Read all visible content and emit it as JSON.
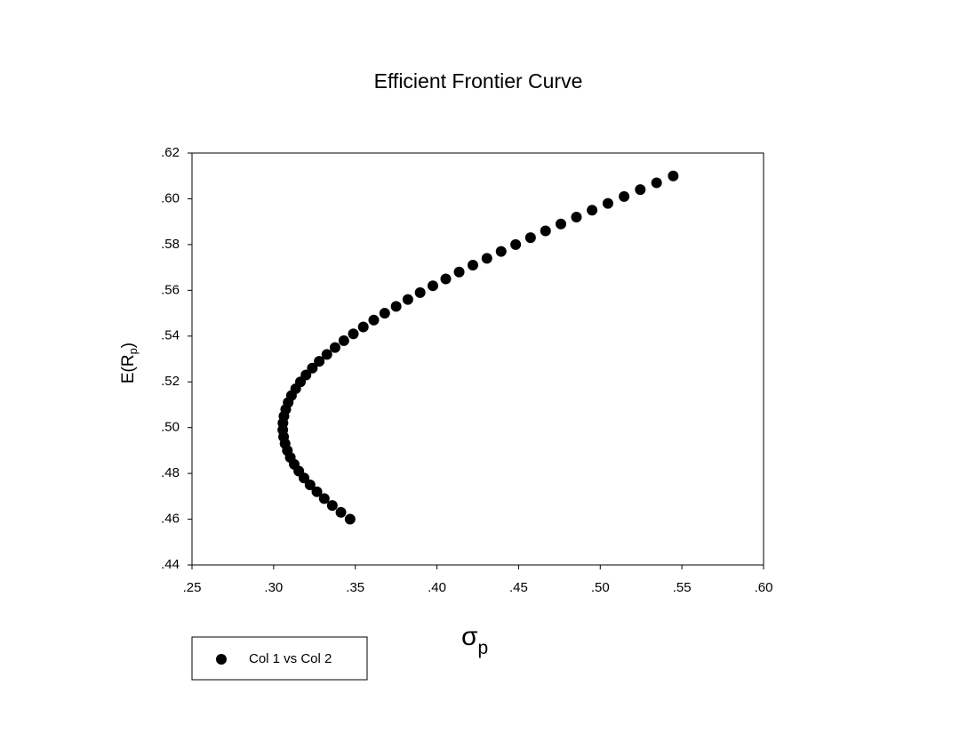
{
  "chart_data": {
    "type": "scatter",
    "title": "Efficient Frontier Curve",
    "xlabel": {
      "main": "σ",
      "sub": "p"
    },
    "ylabel": {
      "main": "E(R",
      "sub": "p",
      "end": ")"
    },
    "xlim": [
      0.25,
      0.6
    ],
    "ylim": [
      0.44,
      0.62
    ],
    "xticks": [
      {
        "value": 0.25,
        "label": ".25"
      },
      {
        "value": 0.3,
        "label": ".30"
      },
      {
        "value": 0.35,
        "label": ".35"
      },
      {
        "value": 0.4,
        "label": ".40"
      },
      {
        "value": 0.45,
        "label": ".45"
      },
      {
        "value": 0.5,
        "label": ".50"
      },
      {
        "value": 0.55,
        "label": ".55"
      },
      {
        "value": 0.6,
        "label": ".60"
      }
    ],
    "yticks": [
      {
        "value": 0.44,
        "label": ".44"
      },
      {
        "value": 0.46,
        "label": ".46"
      },
      {
        "value": 0.48,
        "label": ".48"
      },
      {
        "value": 0.5,
        "label": ".50"
      },
      {
        "value": 0.52,
        "label": ".52"
      },
      {
        "value": 0.54,
        "label": ".54"
      },
      {
        "value": 0.56,
        "label": ".56"
      },
      {
        "value": 0.58,
        "label": ".58"
      },
      {
        "value": 0.6,
        "label": ".60"
      },
      {
        "value": 0.62,
        "label": ".62"
      }
    ],
    "legend": "bottom-left",
    "series": [
      {
        "name": "Col 1 vs Col 2",
        "color": "#000000",
        "x": [
          0.3468,
          0.3412,
          0.3359,
          0.331,
          0.3265,
          0.3223,
          0.3186,
          0.3154,
          0.3126,
          0.3102,
          0.3084,
          0.307,
          0.3061,
          0.3056,
          0.3057,
          0.3063,
          0.3074,
          0.3089,
          0.3109,
          0.3135,
          0.3164,
          0.3198,
          0.3237,
          0.3279,
          0.3326,
          0.3376,
          0.343,
          0.3488,
          0.3549,
          0.3613,
          0.368,
          0.375,
          0.3822,
          0.3897,
          0.3975,
          0.4054,
          0.4136,
          0.422,
          0.4306,
          0.4393,
          0.4482,
          0.4573,
          0.4665,
          0.4759,
          0.4854,
          0.495,
          0.5047,
          0.5146,
          0.5245,
          0.5345,
          0.5447
        ],
        "values": [
          0.46,
          0.463,
          0.466,
          0.469,
          0.472,
          0.475,
          0.478,
          0.481,
          0.484,
          0.487,
          0.49,
          0.493,
          0.496,
          0.499,
          0.502,
          0.505,
          0.508,
          0.511,
          0.514,
          0.517,
          0.52,
          0.523,
          0.526,
          0.529,
          0.532,
          0.535,
          0.538,
          0.541,
          0.544,
          0.547,
          0.55,
          0.553,
          0.556,
          0.559,
          0.562,
          0.565,
          0.568,
          0.571,
          0.574,
          0.577,
          0.58,
          0.583,
          0.586,
          0.589,
          0.592,
          0.595,
          0.598,
          0.601,
          0.604,
          0.607,
          0.61
        ]
      }
    ]
  }
}
